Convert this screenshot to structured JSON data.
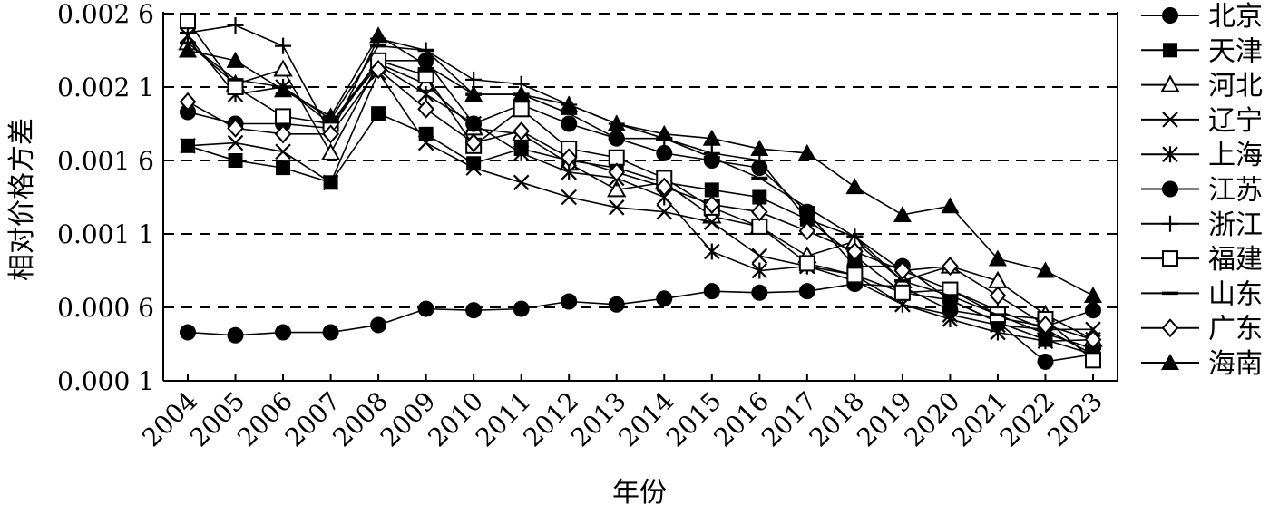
{
  "chart_data": {
    "type": "line",
    "title": "",
    "xlabel": "年份",
    "ylabel": "相对价格方差",
    "categories": [
      "2004",
      "2005",
      "2006",
      "2007",
      "2008",
      "2009",
      "2010",
      "2011",
      "2012",
      "2013",
      "2014",
      "2015",
      "2016",
      "2017",
      "2018",
      "2019",
      "2020",
      "2021",
      "2022",
      "2023"
    ],
    "ylim": [
      0.0001,
      0.0026
    ],
    "yticks": [
      0.0001,
      0.0006,
      0.0011,
      0.0016,
      0.0021,
      0.0026
    ],
    "ytick_labels": [
      "0.000 1",
      "0.000 6",
      "0.001 1",
      "0.001 6",
      "0.002 1",
      "0.002 6"
    ],
    "grid": "horizontal dashed",
    "legend_position": "right",
    "series": [
      {
        "name": "北京",
        "marker": "filled-circle",
        "values": [
          0.00043,
          0.00041,
          0.00043,
          0.00043,
          0.00048,
          0.00059,
          0.00058,
          0.00059,
          0.00064,
          0.00062,
          0.00066,
          0.00071,
          0.0007,
          0.00071,
          0.00076,
          0.00074,
          0.00058,
          0.00053,
          0.00047,
          0.00058
        ]
      },
      {
        "name": "天津",
        "marker": "filled-square",
        "values": [
          0.0017,
          0.0016,
          0.00155,
          0.00145,
          0.00192,
          0.00178,
          0.00158,
          0.00168,
          0.0016,
          0.00155,
          0.00145,
          0.0014,
          0.00135,
          0.0012,
          0.00095,
          0.0007,
          0.00065,
          0.0005,
          0.00038,
          0.00028
        ]
      },
      {
        "name": "河北",
        "marker": "open-triangle",
        "values": [
          0.0024,
          0.00212,
          0.00222,
          0.00165,
          0.00226,
          0.00212,
          0.00182,
          0.00178,
          0.00158,
          0.0014,
          0.00145,
          0.00122,
          0.00115,
          0.00095,
          0.00105,
          0.00078,
          0.00088,
          0.00078,
          0.00055,
          0.00038
        ]
      },
      {
        "name": "辽宁",
        "marker": "x",
        "values": [
          0.0017,
          0.00172,
          0.00166,
          0.00145,
          0.0022,
          0.00172,
          0.00155,
          0.00145,
          0.00135,
          0.00128,
          0.00125,
          0.00118,
          0.00095,
          0.00088,
          0.00082,
          0.00062,
          0.00055,
          0.00048,
          0.00045,
          0.00045
        ]
      },
      {
        "name": "上海",
        "marker": "asterisk",
        "values": [
          0.00245,
          0.00205,
          0.0021,
          0.00185,
          0.00225,
          0.00205,
          0.00185,
          0.00165,
          0.00152,
          0.00148,
          0.00135,
          0.00098,
          0.00085,
          0.00088,
          0.00078,
          0.00062,
          0.00052,
          0.00043,
          0.00037,
          0.00038
        ]
      },
      {
        "name": "江苏",
        "marker": "filled-circle",
        "values": [
          0.00193,
          0.00185,
          0.00185,
          0.00182,
          0.00228,
          0.00228,
          0.00185,
          0.00198,
          0.00185,
          0.00175,
          0.00165,
          0.0016,
          0.00155,
          0.00125,
          0.00088,
          0.00088,
          0.00065,
          0.0005,
          0.00023,
          0.00028
        ]
      },
      {
        "name": "浙江",
        "marker": "plus",
        "values": [
          0.00247,
          0.00252,
          0.00238,
          0.00178,
          0.00243,
          0.00235,
          0.00215,
          0.00212,
          0.00198,
          0.00185,
          0.00175,
          0.00165,
          0.0016,
          0.0012,
          0.00108,
          0.00085,
          0.00072,
          0.00058,
          0.00045,
          0.00028
        ]
      },
      {
        "name": "福建",
        "marker": "open-square",
        "values": [
          0.00255,
          0.0021,
          0.0019,
          0.00185,
          0.00228,
          0.00218,
          0.0017,
          0.00195,
          0.00168,
          0.00162,
          0.00148,
          0.00128,
          0.00115,
          0.0009,
          0.00082,
          0.0007,
          0.00072,
          0.00055,
          0.00052,
          0.00024
        ]
      },
      {
        "name": "山东",
        "marker": "dash",
        "values": [
          0.0024,
          0.00215,
          0.0021,
          0.00188,
          0.00238,
          0.00235,
          0.00205,
          0.00205,
          0.00192,
          0.00175,
          0.00175,
          0.00162,
          0.00148,
          0.00128,
          0.00108,
          0.00078,
          0.00068,
          0.00055,
          0.00042,
          0.00032
        ]
      },
      {
        "name": "广东",
        "marker": "open-diamond",
        "values": [
          0.002,
          0.00182,
          0.00178,
          0.00178,
          0.00222,
          0.00195,
          0.00172,
          0.0018,
          0.00162,
          0.00152,
          0.00142,
          0.0013,
          0.00125,
          0.00112,
          0.00098,
          0.00085,
          0.00088,
          0.00068,
          0.00048,
          0.00038
        ]
      },
      {
        "name": "海南",
        "marker": "filled-triangle",
        "values": [
          0.00235,
          0.00228,
          0.00208,
          0.0019,
          0.00245,
          0.00225,
          0.00205,
          0.00205,
          0.00198,
          0.00185,
          0.00178,
          0.00175,
          0.00168,
          0.00165,
          0.00142,
          0.00123,
          0.00129,
          0.00093,
          0.00085,
          0.00068
        ]
      }
    ]
  }
}
